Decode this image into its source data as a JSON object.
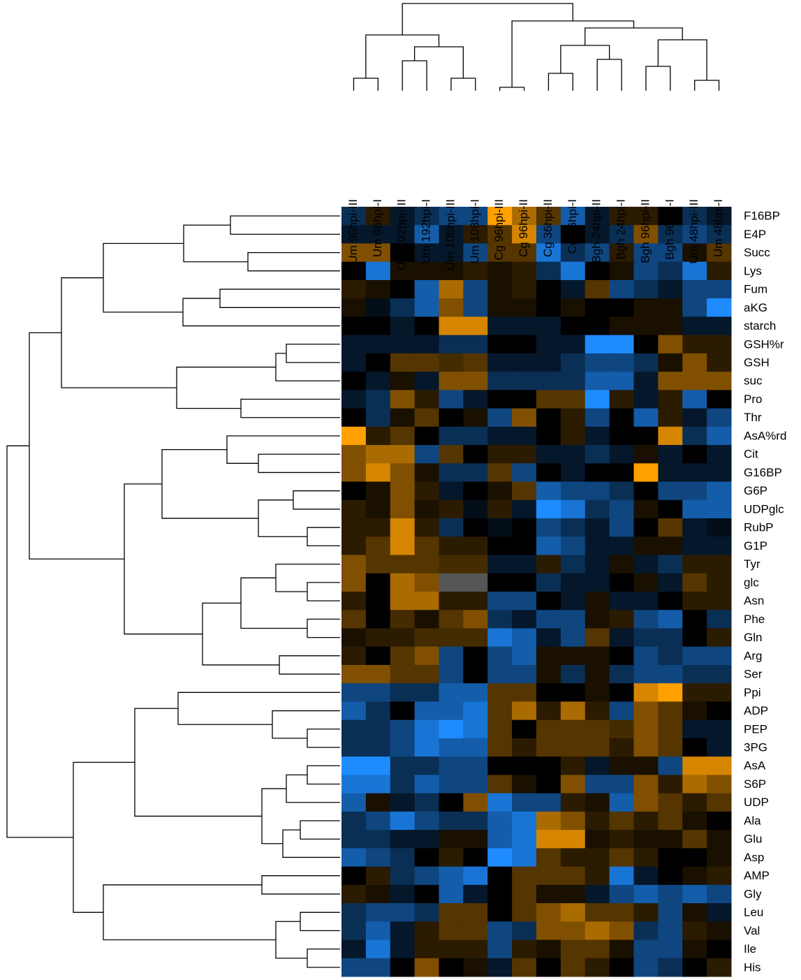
{
  "chart_data": {
    "type": "heatmap",
    "columns": [
      "Um 96hpi-III",
      "Um 96hpi-I",
      "Um 192hpi-III",
      "Um 192hpi-I",
      "Um 108hpi-III",
      "Um 108hpi-I",
      "Cg 96hpi-III",
      "Cg 96hpi-II",
      "Cg 36hpi-II",
      "Cg 36hpi-I",
      "Bgh 24hpi-II",
      "Bgh 24hpi-I",
      "Bgh 96hpi-II",
      "Bgh 96hpi-I",
      "Um 48hpi-III",
      "Um 48hpi-I"
    ],
    "rows": [
      "F16BP",
      "E4P",
      "Succ",
      "Lys",
      "Fum",
      "aKG",
      "starch",
      "GSH%r",
      "GSH",
      "suc",
      "Pro",
      "Thr",
      "AsA%rd",
      "Cit",
      "G16BP",
      "G6P",
      "UDPglc",
      "RubP",
      "G1P",
      "Tyr",
      "glc",
      "Asn",
      "Phe",
      "Gln",
      "Arg",
      "Ser",
      "Ppi",
      "ADP",
      "PEP",
      "3PG",
      "AsA",
      "S6P",
      "UDP",
      "Ala",
      "Glu",
      "Asp",
      "AMP",
      "Gly",
      "Leu",
      "Val",
      "Ile",
      "His"
    ],
    "values": [
      [
        -1,
        0.5,
        -0.5,
        -1,
        -1.5,
        -1.5,
        3,
        2,
        1,
        -2,
        -0.5,
        0.5,
        0.5,
        0,
        -1,
        -0.5
      ],
      [
        -0.5,
        -0.5,
        -0.5,
        -2,
        -0.5,
        0.5,
        1,
        2.5,
        -1.5,
        0,
        -0.5,
        -1,
        1.5,
        -1,
        -1.5,
        -1
      ],
      [
        1.5,
        1.5,
        0,
        -0.5,
        -0.5,
        -1.5,
        1,
        1,
        -2.5,
        -1,
        -1.5,
        0.5,
        -1.5,
        -1.5,
        0.3,
        1
      ],
      [
        0,
        -2.5,
        0.3,
        0.3,
        0.3,
        0.5,
        0.3,
        0.5,
        -1,
        -2.5,
        0,
        0.3,
        -1.5,
        -1,
        -2.5,
        0.5
      ],
      [
        0.5,
        0.3,
        0,
        -2,
        2,
        -1.5,
        0.3,
        0.5,
        0,
        -0.5,
        1,
        -1.5,
        -1,
        -0.5,
        -1.5,
        -1.5
      ],
      [
        0.3,
        -0.3,
        -1,
        -2,
        1.5,
        -1.5,
        0.3,
        0.3,
        0,
        0.3,
        0,
        0,
        0.3,
        0.3,
        -1.5,
        -3
      ],
      [
        0,
        0,
        -0.5,
        0,
        2.5,
        2.5,
        -0.5,
        -0.5,
        -0.5,
        0,
        0,
        0.3,
        0.3,
        0.3,
        -0.5,
        -0.5
      ],
      [
        -0.5,
        -0.5,
        -0.5,
        -0.5,
        -1,
        -1,
        0,
        0,
        -0.5,
        -0.5,
        -3,
        -3,
        0,
        1.5,
        0.5,
        0.5
      ],
      [
        -0.5,
        0,
        1,
        1,
        0.8,
        1,
        -0.5,
        -0.5,
        -0.5,
        -1,
        -1.5,
        -1.5,
        -1,
        0.3,
        1.5,
        0.5
      ],
      [
        0,
        -0.5,
        0.3,
        -0.5,
        1.5,
        1.5,
        -1,
        -1,
        -1,
        -1,
        -2,
        -2,
        -0.5,
        1.5,
        1.5,
        1.5
      ],
      [
        -0.5,
        -1,
        1.5,
        0.5,
        -1.5,
        -0.5,
        0,
        0,
        1,
        1,
        -3,
        0.5,
        -0.5,
        0.5,
        -2,
        0
      ],
      [
        0,
        -1,
        0.3,
        1,
        0,
        0.3,
        -1.5,
        1.5,
        0,
        0.5,
        -1.5,
        0,
        -2,
        0.5,
        -0.5,
        -1.5
      ],
      [
        3,
        0.5,
        1,
        0,
        -1,
        -1,
        -0.5,
        -0.5,
        0,
        0.5,
        -0.5,
        0,
        0,
        2.5,
        -1,
        -2
      ],
      [
        1.5,
        2,
        2,
        -1.5,
        1,
        0,
        0.5,
        0.5,
        -0.5,
        -0.5,
        -1,
        -0.5,
        0.3,
        -0.5,
        0,
        -0.5
      ],
      [
        1.5,
        2.5,
        1.5,
        0.3,
        -1,
        -1,
        1,
        -1.5,
        0,
        -0.5,
        0,
        0,
        3,
        -0.5,
        -0.5,
        -0.5
      ],
      [
        0,
        0.3,
        1.5,
        0.5,
        -0.5,
        0,
        0.3,
        1,
        -2,
        -1.5,
        -1.5,
        -1,
        0,
        -1.5,
        -1.5,
        -2
      ],
      [
        0.5,
        0.3,
        1.5,
        0.3,
        0.5,
        -0.3,
        0.5,
        -0.5,
        -3,
        -2.5,
        -1,
        -1.5,
        0.3,
        0,
        -2,
        -2
      ],
      [
        0.5,
        0.5,
        2.5,
        0.5,
        -1,
        0,
        -0.3,
        0,
        -1.5,
        -1,
        -0.5,
        -1.5,
        0,
        1,
        -0.5,
        -0.3
      ],
      [
        0.5,
        1,
        2.5,
        1,
        0.5,
        0.5,
        0,
        0,
        -2,
        -1.5,
        -0.5,
        -0.5,
        0.3,
        0.3,
        -0.5,
        -0.5
      ],
      [
        1.5,
        1,
        1,
        1,
        0.8,
        0.8,
        -0.5,
        -0.5,
        0.5,
        -1,
        -0.5,
        0.3,
        -0.5,
        -1,
        0.5,
        0.5
      ],
      [
        1.5,
        0,
        2,
        1.5,
        null,
        null,
        0,
        0,
        -1,
        -0.5,
        -0.5,
        0,
        0.3,
        -0.5,
        1,
        0.5
      ],
      [
        0.5,
        0,
        2,
        2,
        0.5,
        0.5,
        -1.5,
        -1.5,
        0,
        -0.5,
        0.3,
        -0.5,
        -0.5,
        0,
        0.5,
        0.5
      ],
      [
        1,
        0,
        0.8,
        0.3,
        1,
        1.5,
        -1,
        -0.5,
        -1.5,
        -1.5,
        0.3,
        0.5,
        -1.5,
        -2,
        0,
        -1
      ],
      [
        0.3,
        0.5,
        0.5,
        0.8,
        0.8,
        0.8,
        -2.5,
        -2,
        -0.5,
        -1.5,
        1,
        -0.5,
        -1,
        -1,
        0,
        0.5
      ],
      [
        0.5,
        0,
        1,
        1.5,
        -1.5,
        0,
        -1.5,
        -2,
        0.3,
        0.3,
        0.3,
        0,
        -1.5,
        -1,
        -1.5,
        -1.5
      ],
      [
        1.5,
        1.5,
        1,
        1,
        -1.5,
        0,
        -1.5,
        -1.5,
        0.3,
        -1,
        0.3,
        -1,
        -1.5,
        -1.5,
        -1,
        -1
      ],
      [
        -1.5,
        -1.5,
        -1,
        -1,
        -2,
        -2,
        1,
        1,
        0,
        0,
        0.3,
        0,
        2.5,
        3,
        0.5,
        0.5
      ],
      [
        -2,
        -1,
        0,
        -2,
        -2,
        -2.5,
        1,
        2,
        0.5,
        2,
        0.5,
        -1.5,
        1.5,
        1,
        0.3,
        0
      ],
      [
        -1,
        -1,
        -1.5,
        -2.5,
        -3,
        -2.5,
        1,
        0,
        1,
        1,
        1,
        0.8,
        1.5,
        1,
        -0.5,
        -0.5
      ],
      [
        -1,
        -1,
        -1.5,
        -2.5,
        -2,
        -2,
        1,
        0.5,
        1,
        1,
        1,
        0.5,
        1.5,
        1,
        0,
        -0.5
      ],
      [
        -3,
        -3,
        -1,
        -1,
        -1.5,
        -1.5,
        0,
        0,
        0,
        0.5,
        -0.5,
        0.3,
        0.3,
        -1.5,
        2.5,
        2.5
      ],
      [
        -2.5,
        -2.5,
        -1,
        -2,
        -1.5,
        -1.5,
        1,
        0.3,
        0,
        1.5,
        -1.5,
        -1.5,
        1.5,
        0.5,
        2,
        1.5
      ],
      [
        -2,
        0.3,
        -0.5,
        -1,
        0,
        1.5,
        -2.5,
        -1.5,
        -1.5,
        0.5,
        0.3,
        -2,
        1.5,
        1,
        0.5,
        1
      ],
      [
        -1,
        -1.5,
        -2.5,
        -1.5,
        -1,
        -1,
        -2,
        -2.5,
        2,
        1.5,
        0.5,
        1,
        0.5,
        1,
        0.3,
        0
      ],
      [
        -1,
        -1,
        -0.5,
        -0.5,
        0.3,
        0.3,
        -2,
        -2.5,
        2.5,
        2.5,
        0.3,
        0.5,
        0.3,
        0.3,
        1,
        0.3
      ],
      [
        -2,
        -1.5,
        -1,
        0,
        0.5,
        0,
        -3,
        -2.5,
        1,
        0.5,
        0.5,
        1,
        0.5,
        0,
        0,
        0.3
      ],
      [
        0,
        0.5,
        -1,
        -1.5,
        -2,
        -2.5,
        0,
        1,
        1,
        1,
        0.5,
        -2.5,
        -0.5,
        0,
        0.3,
        0.5
      ],
      [
        0.5,
        0.3,
        -0.5,
        0,
        -2,
        -0.5,
        0,
        1,
        0.3,
        0.3,
        -0.5,
        -1.5,
        -2,
        -1.5,
        -2,
        -1.5
      ],
      [
        -1,
        -1.5,
        -1.5,
        -1,
        1,
        1,
        0,
        1,
        1.5,
        2,
        1,
        1,
        0.5,
        -1.5,
        0.3,
        -0.5
      ],
      [
        -1,
        -2,
        -0.5,
        0.5,
        1,
        1,
        -1.5,
        -1,
        1.5,
        1.5,
        2,
        1.5,
        -1,
        -1.5,
        0.5,
        0.3
      ],
      [
        -0.5,
        -2.5,
        -0.5,
        0.5,
        0.5,
        0.5,
        -1.5,
        0.5,
        0.3,
        1,
        1,
        0.3,
        -1.5,
        -1.5,
        0.3,
        0
      ],
      [
        -1.5,
        -1.5,
        0,
        1.5,
        0,
        0.3,
        -0.5,
        1,
        0,
        1,
        0.5,
        0,
        -1.5,
        -1,
        0,
        0.5
      ]
    ],
    "zlim": [
      -3,
      3
    ],
    "colors": {
      "low": "#1e8cff",
      "mid": "#000000",
      "high": "#ffa000",
      "missing": "#555555"
    }
  }
}
